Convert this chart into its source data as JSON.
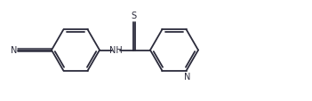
{
  "background_color": "#ffffff",
  "line_color": "#2b2b3b",
  "line_width": 1.3,
  "dbo": 0.025,
  "font_size": 7.0,
  "figsize": [
    3.51,
    1.15
  ],
  "dpi": 100,
  "xlim": [
    0,
    3.51
  ],
  "ylim": [
    0,
    1.15
  ]
}
